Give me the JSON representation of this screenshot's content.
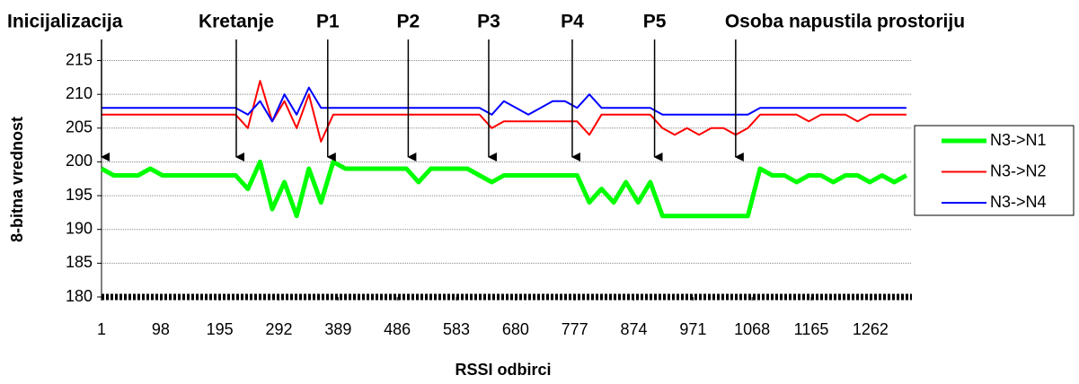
{
  "chart_data": {
    "type": "line",
    "xlabel": "RSSI odbirci",
    "ylabel": "8-bitna vrednost",
    "x": [
      1,
      21,
      41,
      61,
      81,
      101,
      121,
      141,
      161,
      181,
      201,
      221,
      241,
      261,
      281,
      301,
      321,
      341,
      361,
      381,
      401,
      421,
      441,
      461,
      481,
      501,
      521,
      541,
      561,
      581,
      601,
      621,
      641,
      661,
      681,
      701,
      721,
      741,
      761,
      781,
      801,
      821,
      841,
      861,
      881,
      901,
      921,
      941,
      961,
      981,
      1001,
      1021,
      1041,
      1061,
      1081,
      1101,
      1121,
      1141,
      1161,
      1181,
      1201,
      1221,
      1241,
      1261,
      1281,
      1301,
      1321
    ],
    "series": [
      {
        "name": "N3->N1",
        "color": "#00ff00",
        "line_width": 5,
        "values": [
          199,
          198,
          198,
          198,
          199,
          198,
          198,
          198,
          198,
          198,
          198,
          198,
          196,
          200,
          193,
          197,
          192,
          199,
          194,
          200,
          199,
          199,
          199,
          199,
          199,
          199,
          197,
          199,
          199,
          199,
          199,
          198,
          197,
          198,
          198,
          198,
          198,
          198,
          198,
          198,
          194,
          196,
          194,
          197,
          194,
          197,
          192,
          192,
          192,
          192,
          192,
          192,
          192,
          192,
          199,
          198,
          198,
          197,
          198,
          198,
          197,
          198,
          198,
          197,
          198,
          197,
          198
        ]
      },
      {
        "name": "N3->N2",
        "color": "#ff0000",
        "line_width": 2,
        "values": [
          207,
          207,
          207,
          207,
          207,
          207,
          207,
          207,
          207,
          207,
          207,
          207,
          205,
          212,
          206,
          209,
          205,
          210,
          203,
          207,
          207,
          207,
          207,
          207,
          207,
          207,
          207,
          207,
          207,
          207,
          207,
          207,
          205,
          206,
          206,
          206,
          206,
          206,
          206,
          206,
          204,
          207,
          207,
          207,
          207,
          207,
          205,
          204,
          205,
          204,
          205,
          205,
          204,
          205,
          207,
          207,
          207,
          207,
          206,
          207,
          207,
          207,
          206,
          207,
          207,
          207,
          207
        ]
      },
      {
        "name": "N3->N4",
        "color": "#0000ff",
        "line_width": 2,
        "values": [
          208,
          208,
          208,
          208,
          208,
          208,
          208,
          208,
          208,
          208,
          208,
          208,
          207,
          209,
          206,
          210,
          207,
          211,
          208,
          208,
          208,
          208,
          208,
          208,
          208,
          208,
          208,
          208,
          208,
          208,
          208,
          208,
          207,
          209,
          208,
          207,
          208,
          209,
          209,
          208,
          210,
          208,
          208,
          208,
          208,
          208,
          207,
          207,
          207,
          207,
          207,
          207,
          207,
          207,
          208,
          208,
          208,
          208,
          208,
          208,
          208,
          208,
          208,
          208,
          208,
          208,
          208
        ]
      }
    ],
    "xlim": [
      1,
      1330
    ],
    "xticks": [
      1,
      98,
      195,
      292,
      389,
      486,
      583,
      680,
      777,
      874,
      971,
      1068,
      1165,
      1262
    ],
    "ylim": [
      180,
      216
    ],
    "yticks": [
      180,
      185,
      190,
      195,
      200,
      205,
      210,
      215
    ],
    "grid": true,
    "legend": "right",
    "annotations": [
      {
        "text": "Inicijalizacija",
        "x": 1
      },
      {
        "text": "Kretanje",
        "x": 222
      },
      {
        "text": "P1",
        "x": 372
      },
      {
        "text": "P2",
        "x": 504
      },
      {
        "text": "P3",
        "x": 636
      },
      {
        "text": "P4",
        "x": 773
      },
      {
        "text": "P5",
        "x": 908
      },
      {
        "text": "Osoba napustila prostoriju",
        "x": 1041
      }
    ]
  }
}
